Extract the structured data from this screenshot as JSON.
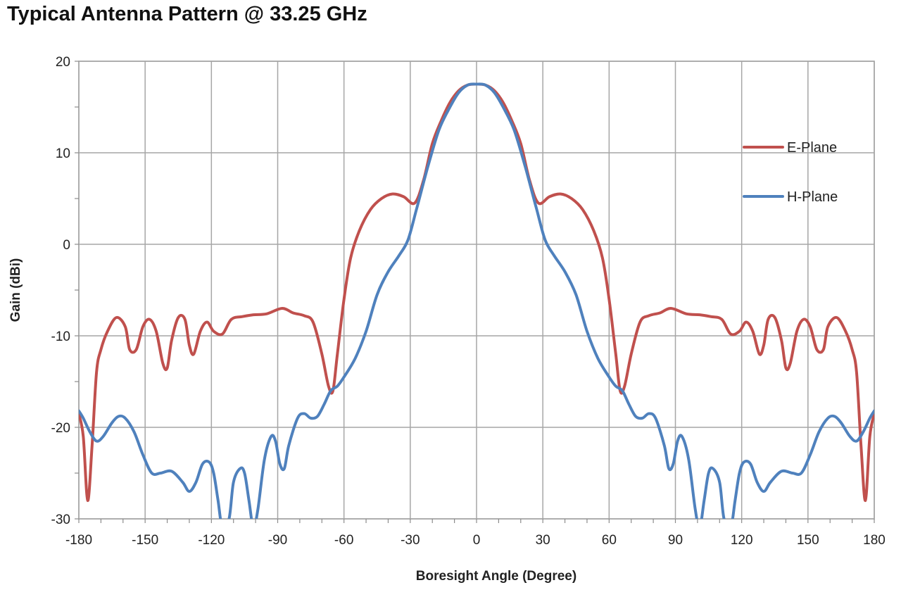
{
  "chart_data": {
    "type": "line",
    "title": "Typical Antenna Pattern @ 33.25 GHz",
    "xlabel": "Boresight Angle (Degree)",
    "ylabel": "Gain (dBi)",
    "xlim": [
      -180,
      180
    ],
    "ylim": [
      -30,
      20
    ],
    "xticks": [
      -180,
      -150,
      -120,
      -90,
      -60,
      -30,
      0,
      30,
      60,
      90,
      120,
      150,
      180
    ],
    "yticks": [
      -30,
      -20,
      -10,
      0,
      10,
      20
    ],
    "grid": true,
    "legend_position": "top-right",
    "series": [
      {
        "name": "E-Plane",
        "color": "#c0504d",
        "points": [
          [
            -180,
            -18.5
          ],
          [
            -178,
            -21
          ],
          [
            -176,
            -28
          ],
          [
            -174,
            -22
          ],
          [
            -172,
            -14
          ],
          [
            -170,
            -11.5
          ],
          [
            -167,
            -9.5
          ],
          [
            -163,
            -8
          ],
          [
            -159,
            -9
          ],
          [
            -157,
            -11.5
          ],
          [
            -154,
            -11.5
          ],
          [
            -151,
            -9
          ],
          [
            -148,
            -8.2
          ],
          [
            -145,
            -9.5
          ],
          [
            -142,
            -13
          ],
          [
            -140,
            -13.5
          ],
          [
            -138,
            -10.5
          ],
          [
            -135,
            -8
          ],
          [
            -132,
            -8.2
          ],
          [
            -130,
            -11
          ],
          [
            -128,
            -12
          ],
          [
            -125,
            -9.5
          ],
          [
            -122,
            -8.5
          ],
          [
            -119,
            -9.5
          ],
          [
            -115,
            -9.8
          ],
          [
            -111,
            -8.2
          ],
          [
            -106,
            -7.9
          ],
          [
            -101,
            -7.7
          ],
          [
            -95,
            -7.6
          ],
          [
            -88,
            -7
          ],
          [
            -83,
            -7.5
          ],
          [
            -78,
            -7.8
          ],
          [
            -74,
            -8.5
          ],
          [
            -70,
            -12
          ],
          [
            -67,
            -15.5
          ],
          [
            -65,
            -16
          ],
          [
            -63,
            -12
          ],
          [
            -60,
            -6
          ],
          [
            -57,
            -1.5
          ],
          [
            -53,
            1.5
          ],
          [
            -48,
            3.8
          ],
          [
            -43,
            5
          ],
          [
            -38,
            5.5
          ],
          [
            -33,
            5.2
          ],
          [
            -28,
            4.5
          ],
          [
            -24,
            7
          ],
          [
            -20,
            11
          ],
          [
            -16,
            13.5
          ],
          [
            -12,
            15.5
          ],
          [
            -8,
            16.8
          ],
          [
            -4,
            17.4
          ],
          [
            0,
            17.5
          ],
          [
            4,
            17.4
          ],
          [
            8,
            16.8
          ],
          [
            12,
            15.5
          ],
          [
            16,
            13.5
          ],
          [
            20,
            11
          ],
          [
            24,
            7
          ],
          [
            28,
            4.5
          ],
          [
            33,
            5.2
          ],
          [
            38,
            5.5
          ],
          [
            43,
            5
          ],
          [
            48,
            3.8
          ],
          [
            53,
            1.5
          ],
          [
            57,
            -1.5
          ],
          [
            60,
            -6
          ],
          [
            63,
            -12
          ],
          [
            65,
            -16
          ],
          [
            67,
            -15.5
          ],
          [
            70,
            -12
          ],
          [
            74,
            -8.5
          ],
          [
            78,
            -7.8
          ],
          [
            83,
            -7.5
          ],
          [
            88,
            -7
          ],
          [
            95,
            -7.6
          ],
          [
            101,
            -7.7
          ],
          [
            106,
            -7.9
          ],
          [
            111,
            -8.2
          ],
          [
            115,
            -9.8
          ],
          [
            119,
            -9.5
          ],
          [
            122,
            -8.5
          ],
          [
            125,
            -9.5
          ],
          [
            128,
            -12
          ],
          [
            130,
            -11
          ],
          [
            132,
            -8.2
          ],
          [
            135,
            -8
          ],
          [
            138,
            -10.5
          ],
          [
            140,
            -13.5
          ],
          [
            142,
            -13
          ],
          [
            145,
            -9.5
          ],
          [
            148,
            -8.2
          ],
          [
            151,
            -9
          ],
          [
            154,
            -11.5
          ],
          [
            157,
            -11.5
          ],
          [
            159,
            -9
          ],
          [
            163,
            -8
          ],
          [
            167,
            -9.5
          ],
          [
            170,
            -11.5
          ],
          [
            172,
            -14
          ],
          [
            174,
            -22
          ],
          [
            176,
            -28
          ],
          [
            178,
            -21
          ],
          [
            180,
            -18.5
          ]
        ]
      },
      {
        "name": "H-Plane",
        "color": "#4f81bd",
        "points": [
          [
            -180,
            -18.2
          ],
          [
            -178,
            -19
          ],
          [
            -175,
            -20.5
          ],
          [
            -172,
            -21.5
          ],
          [
            -169,
            -21
          ],
          [
            -165,
            -19.5
          ],
          [
            -162,
            -18.8
          ],
          [
            -159,
            -19
          ],
          [
            -155,
            -20.5
          ],
          [
            -151,
            -23
          ],
          [
            -147,
            -25
          ],
          [
            -143,
            -25
          ],
          [
            -138,
            -24.8
          ],
          [
            -133,
            -26
          ],
          [
            -130,
            -27
          ],
          [
            -127,
            -26
          ],
          [
            -124,
            -24
          ],
          [
            -121,
            -23.8
          ],
          [
            -119,
            -25
          ],
          [
            -117,
            -28
          ],
          [
            -115,
            -31
          ],
          [
            -112,
            -30
          ],
          [
            -110,
            -26
          ],
          [
            -107,
            -24.5
          ],
          [
            -105,
            -25
          ],
          [
            -103,
            -28
          ],
          [
            -101,
            -31
          ],
          [
            -99,
            -29
          ],
          [
            -96,
            -23.5
          ],
          [
            -93,
            -21
          ],
          [
            -91,
            -21.5
          ],
          [
            -89,
            -24
          ],
          [
            -87,
            -24.5
          ],
          [
            -85,
            -22
          ],
          [
            -81,
            -19
          ],
          [
            -78,
            -18.5
          ],
          [
            -75,
            -19
          ],
          [
            -72,
            -18.8
          ],
          [
            -69,
            -17.5
          ],
          [
            -66,
            -16
          ],
          [
            -63,
            -15.5
          ],
          [
            -60,
            -14.5
          ],
          [
            -55,
            -12.5
          ],
          [
            -50,
            -9.5
          ],
          [
            -45,
            -5.5
          ],
          [
            -40,
            -3
          ],
          [
            -35,
            -1.2
          ],
          [
            -31,
            0.5
          ],
          [
            -27,
            4
          ],
          [
            -22,
            8.5
          ],
          [
            -17,
            12.5
          ],
          [
            -12,
            15
          ],
          [
            -8,
            16.6
          ],
          [
            -4,
            17.4
          ],
          [
            0,
            17.5
          ],
          [
            4,
            17.4
          ],
          [
            8,
            16.6
          ],
          [
            12,
            15
          ],
          [
            17,
            12.5
          ],
          [
            22,
            8.5
          ],
          [
            27,
            4
          ],
          [
            31,
            0.5
          ],
          [
            35,
            -1.2
          ],
          [
            40,
            -3
          ],
          [
            45,
            -5.5
          ],
          [
            50,
            -9.5
          ],
          [
            55,
            -12.5
          ],
          [
            60,
            -14.5
          ],
          [
            63,
            -15.5
          ],
          [
            66,
            -16
          ],
          [
            69,
            -17.5
          ],
          [
            72,
            -18.8
          ],
          [
            75,
            -19
          ],
          [
            78,
            -18.5
          ],
          [
            81,
            -19
          ],
          [
            85,
            -22
          ],
          [
            87,
            -24.5
          ],
          [
            89,
            -24
          ],
          [
            91,
            -21.5
          ],
          [
            93,
            -21
          ],
          [
            96,
            -23.5
          ],
          [
            99,
            -29
          ],
          [
            101,
            -31
          ],
          [
            103,
            -28
          ],
          [
            105,
            -25
          ],
          [
            107,
            -24.5
          ],
          [
            110,
            -26
          ],
          [
            112,
            -30
          ],
          [
            115,
            -31
          ],
          [
            117,
            -28
          ],
          [
            119,
            -25
          ],
          [
            121,
            -23.8
          ],
          [
            124,
            -24
          ],
          [
            127,
            -26
          ],
          [
            130,
            -27
          ],
          [
            133,
            -26
          ],
          [
            138,
            -24.8
          ],
          [
            143,
            -25
          ],
          [
            147,
            -25
          ],
          [
            151,
            -23
          ],
          [
            155,
            -20.5
          ],
          [
            159,
            -19
          ],
          [
            162,
            -18.8
          ],
          [
            165,
            -19.5
          ],
          [
            169,
            -21
          ],
          [
            172,
            -21.5
          ],
          [
            175,
            -20.5
          ],
          [
            178,
            -19
          ],
          [
            180,
            -18.2
          ]
        ]
      }
    ]
  }
}
